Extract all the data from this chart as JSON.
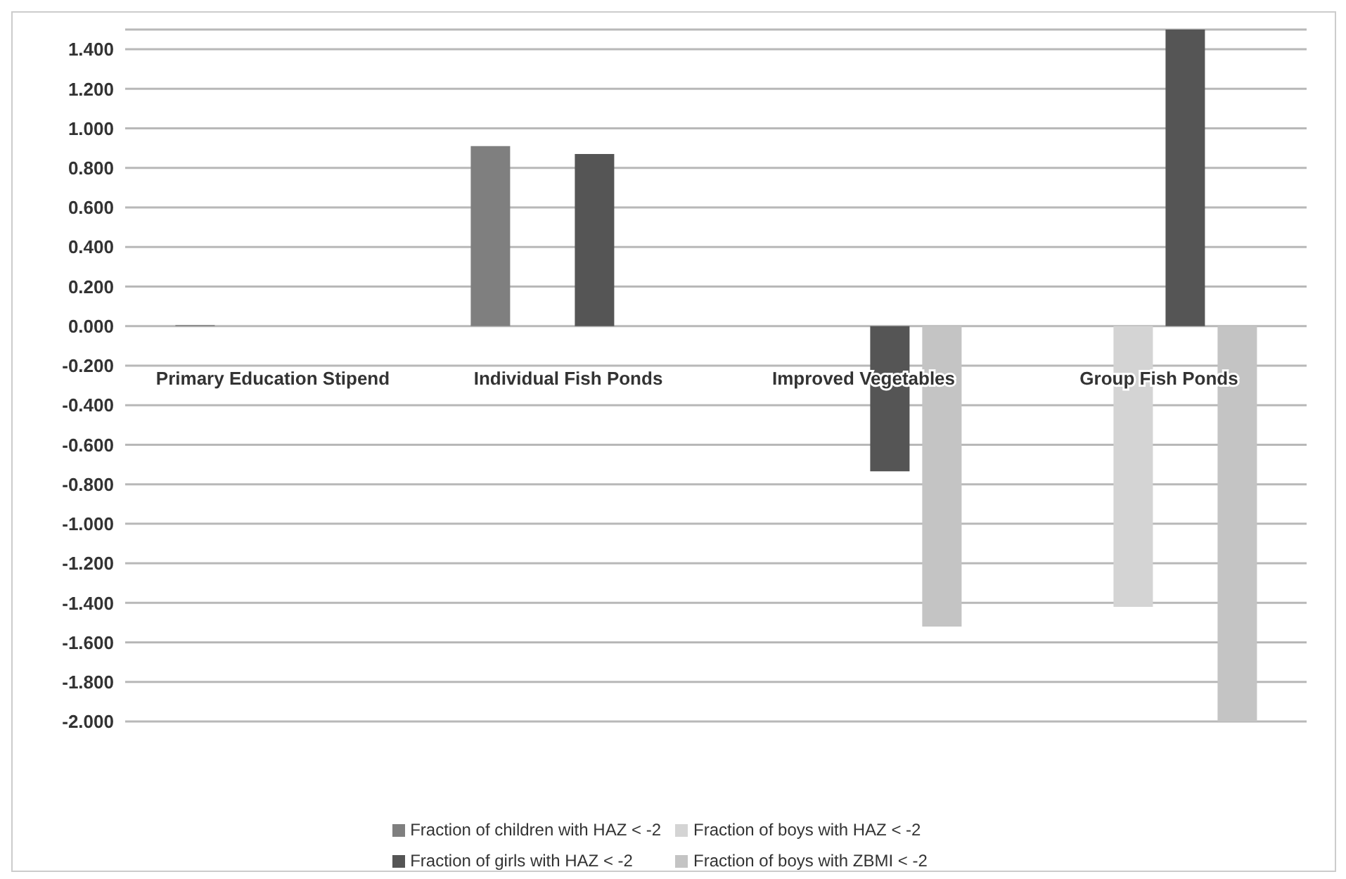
{
  "chart_data": {
    "type": "bar",
    "categories": [
      "Primary Education Stipend",
      "Individual Fish Ponds",
      "Improved Vegetables",
      "Group Fish Ponds"
    ],
    "series": [
      {
        "name": "Fraction of children with HAZ < -2",
        "color": "#7f7f7f",
        "values": [
          0.005,
          0.91,
          null,
          null
        ]
      },
      {
        "name": "Fraction of boys with HAZ < -2",
        "color": "#d4d4d4",
        "values": [
          null,
          null,
          null,
          -1.42
        ]
      },
      {
        "name": "Fraction of girls with HAZ < -2",
        "color": "#555555",
        "values": [
          null,
          0.87,
          -0.735,
          1.5
        ]
      },
      {
        "name": "Fraction of boys with ZBMI < -2",
        "color": "#c4c4c4",
        "values": [
          null,
          null,
          -1.52,
          -2.0
        ]
      }
    ],
    "ylim": [
      -2,
      1.5
    ],
    "yticks": [
      {
        "value": -2,
        "label": "-2.000"
      },
      {
        "value": -1.8,
        "label": "-1.800"
      },
      {
        "value": -1.6,
        "label": "-1.600"
      },
      {
        "value": -1.4,
        "label": "-1.400"
      },
      {
        "value": -1.2,
        "label": "-1.200"
      },
      {
        "value": -1,
        "label": "-1.000"
      },
      {
        "value": -0.8,
        "label": "-0.800"
      },
      {
        "value": -0.6,
        "label": "-0.600"
      },
      {
        "value": -0.4,
        "label": "-0.400"
      },
      {
        "value": -0.2,
        "label": "-0.200"
      },
      {
        "value": 0,
        "label": "0.000"
      },
      {
        "value": 0.2,
        "label": "0.200"
      },
      {
        "value": 0.4,
        "label": "0.400"
      },
      {
        "value": 0.6,
        "label": "0.600"
      },
      {
        "value": 0.8,
        "label": "0.800"
      },
      {
        "value": 1,
        "label": "1.000"
      },
      {
        "value": 1.2,
        "label": "1.200"
      },
      {
        "value": 1.4,
        "label": "1.400"
      }
    ],
    "grid": "y",
    "legend": "bottom"
  }
}
